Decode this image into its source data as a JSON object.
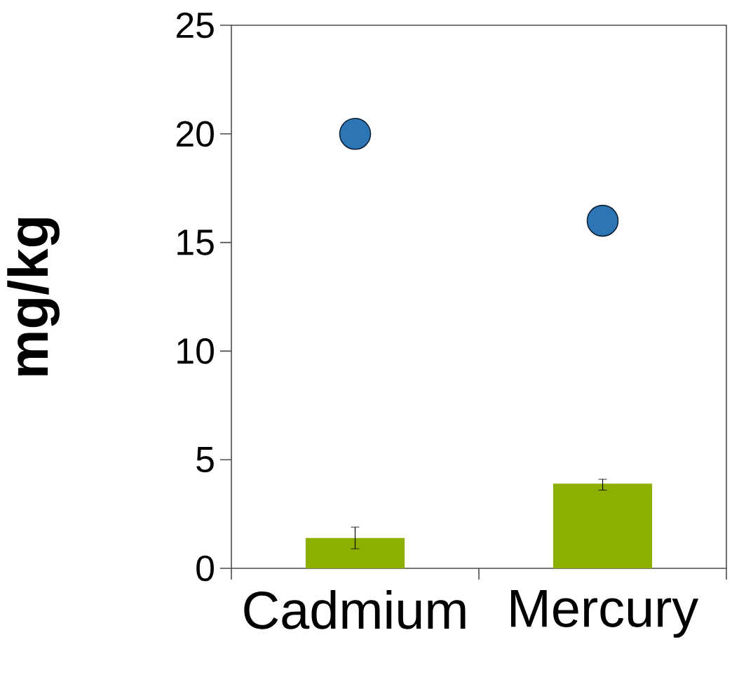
{
  "chart_data": {
    "type": "bar",
    "ylabel": "mg/kg",
    "categories": [
      "Cadmium",
      "Mercury"
    ],
    "series": [
      {
        "color": "#8db000",
        "values": [
          1.4,
          3.9
        ],
        "errors": [
          [
            0.9,
            1.9
          ],
          [
            3.6,
            4.1
          ]
        ]
      },
      {
        "type": "scatter",
        "color": "#2e75b6",
        "x": [
          "Cadmium",
          "Mercury"
        ],
        "values": [
          20,
          16
        ],
        "marker": "circle"
      }
    ],
    "ylim": [
      0,
      25
    ],
    "yticks": [
      0,
      5,
      10,
      15,
      20,
      25
    ],
    "grid": false
  }
}
